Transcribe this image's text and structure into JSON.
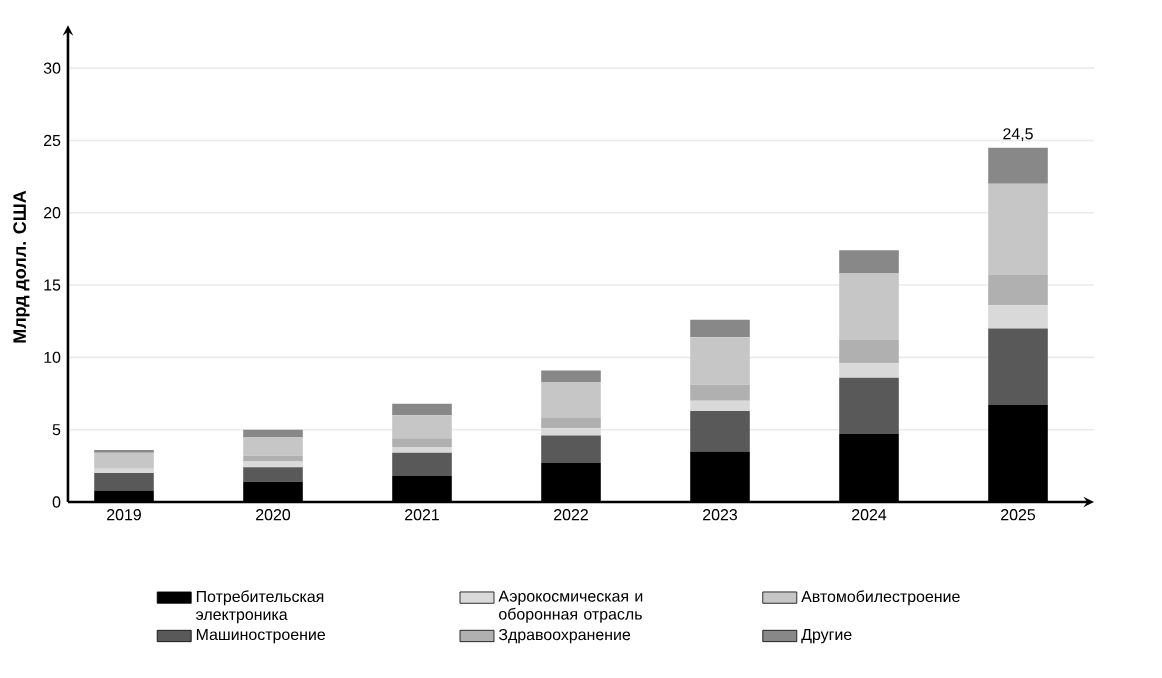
{
  "chart_data": {
    "type": "bar",
    "stacked": true,
    "ylabel": "Млрд долл. США",
    "categories": [
      "2019",
      "2020",
      "2021",
      "2022",
      "2023",
      "2024",
      "2025"
    ],
    "series": [
      {
        "name": "Потребительская электроника",
        "color": "#000000",
        "values": [
          0.8,
          1.4,
          1.8,
          2.7,
          3.5,
          4.7,
          6.7
        ]
      },
      {
        "name": "Машиностроение",
        "color": "#595959",
        "values": [
          1.2,
          1.0,
          1.6,
          1.9,
          2.8,
          3.9,
          5.3
        ]
      },
      {
        "name": "Аэрокосмическая и оборонная отрасль",
        "color": "#d9d9d9",
        "values": [
          0.3,
          0.4,
          0.4,
          0.5,
          0.7,
          1.0,
          1.6
        ]
      },
      {
        "name": "Здравоохранение",
        "color": "#b0b0b0",
        "values": [
          null,
          0.4,
          0.6,
          0.7,
          1.1,
          1.6,
          2.1
        ]
      },
      {
        "name": "Автомобилестроение",
        "color": "#c6c6c6",
        "values": [
          1.1,
          1.3,
          1.6,
          2.5,
          3.3,
          4.6,
          6.3
        ]
      },
      {
        "name": "Другие",
        "color": "#888888",
        "values": [
          0.2,
          0.5,
          0.8,
          0.8,
          1.2,
          1.6,
          2.5
        ]
      }
    ],
    "totals": [
      null,
      null,
      null,
      null,
      null,
      null,
      "24,5"
    ],
    "ylim": [
      0,
      32.5
    ],
    "yticks": [
      0,
      5,
      10,
      15,
      20,
      25,
      30
    ],
    "grid": "y",
    "legend": "bottom"
  }
}
